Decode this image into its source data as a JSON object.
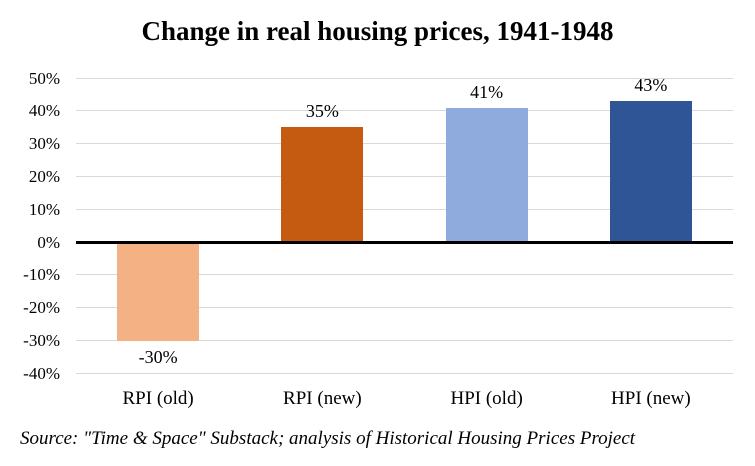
{
  "chart_data": {
    "type": "bar",
    "title": "Change in real housing prices, 1941-1948",
    "categories": [
      "RPI (old)",
      "RPI (new)",
      "HPI (old)",
      "HPI (new)"
    ],
    "values": [
      -30,
      35,
      41,
      43
    ],
    "data_labels": [
      "-30%",
      "35%",
      "41%",
      "43%"
    ],
    "bar_colors": [
      "#F4B183",
      "#C55A11",
      "#8FAADC",
      "#2F5597"
    ],
    "xlabel": "",
    "ylabel": "",
    "ylim": [
      -40,
      50
    ],
    "ytick_step": 10,
    "ytick_labels": [
      "50%",
      "40%",
      "30%",
      "20%",
      "10%",
      "0%",
      "-10%",
      "-20%",
      "-30%",
      "-40%"
    ],
    "grid": true,
    "gridline_color": "#D9D9D9",
    "zero_line_color": "#000000",
    "legend": "none",
    "source_note": "Source: \"Time & Space\" Substack; analysis of Historical Housing Prices Project"
  }
}
